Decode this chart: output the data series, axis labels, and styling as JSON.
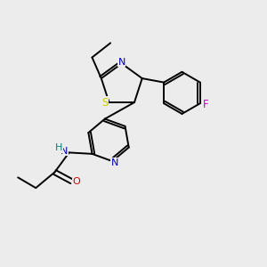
{
  "background_color": "#ececec",
  "atom_colors": {
    "C": "#000000",
    "N": "#0000cc",
    "O": "#cc0000",
    "S": "#cccc00",
    "F": "#cc00cc",
    "H": "#008080"
  },
  "figsize": [
    3.0,
    3.0
  ],
  "dpi": 100,
  "bond_lw": 1.4,
  "font_size": 8.0
}
